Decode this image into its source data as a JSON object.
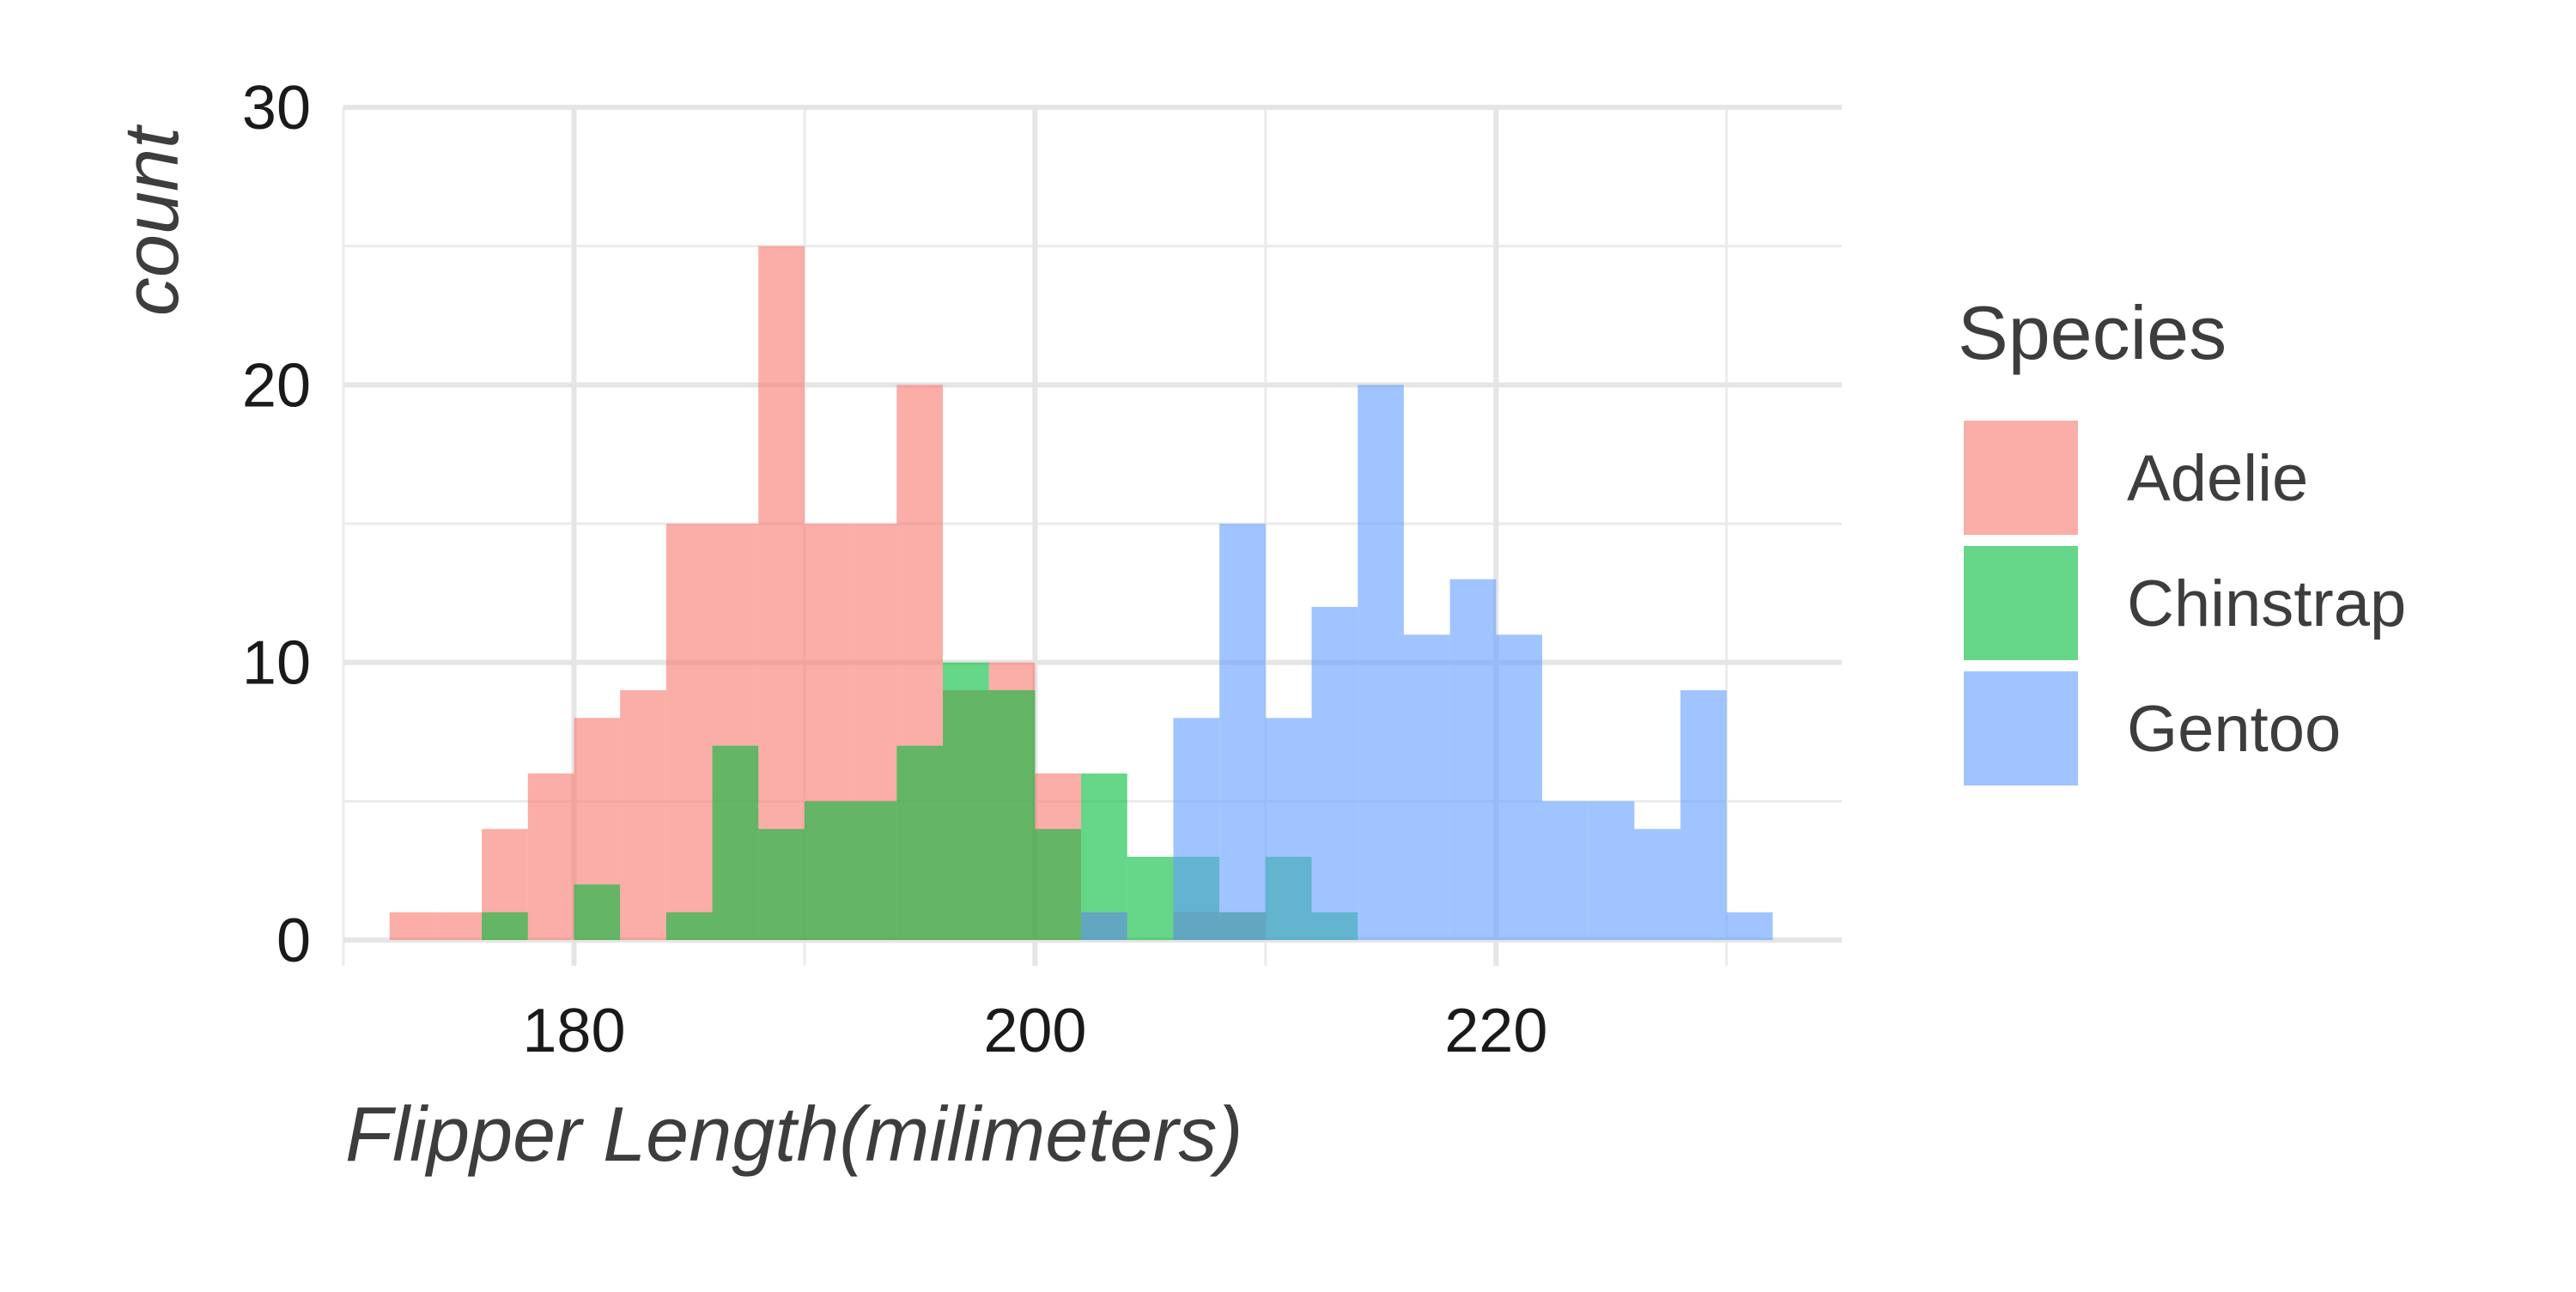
{
  "chart_data": {
    "type": "bar",
    "subtype": "histogram",
    "bin_width": 2,
    "xlabel": "Flipper Length(milimeters)",
    "ylabel": "count",
    "xlim": [
      170,
      235
    ],
    "ylim": [
      0,
      30
    ],
    "x_ticks": [
      180,
      200,
      220
    ],
    "y_ticks": [
      0,
      10,
      20,
      30
    ],
    "grid": true,
    "legend": {
      "title": "Species",
      "position": "right"
    },
    "bin_starts": [
      172,
      174,
      176,
      178,
      180,
      182,
      184,
      186,
      188,
      190,
      192,
      194,
      196,
      198,
      200,
      202,
      204,
      206,
      208,
      210,
      212,
      214,
      216,
      218,
      220,
      222,
      224,
      226,
      228,
      230
    ],
    "series": [
      {
        "name": "Adelie",
        "color": "#F8766D",
        "values": [
          1,
          1,
          4,
          6,
          8,
          9,
          15,
          15,
          25,
          15,
          15,
          20,
          9,
          10,
          6,
          1,
          0,
          1,
          1,
          0,
          0,
          0,
          0,
          0,
          0,
          0,
          0,
          0,
          0,
          0
        ]
      },
      {
        "name": "Chinstrap",
        "color": "#00BA38",
        "values": [
          0,
          0,
          1,
          0,
          2,
          0,
          1,
          7,
          4,
          5,
          5,
          7,
          10,
          9,
          4,
          6,
          3,
          3,
          1,
          3,
          1,
          0,
          0,
          0,
          0,
          0,
          0,
          0,
          0,
          0
        ]
      },
      {
        "name": "Gentoo",
        "color": "#619CFF",
        "values": [
          0,
          0,
          0,
          0,
          0,
          0,
          0,
          0,
          0,
          0,
          0,
          0,
          0,
          0,
          0,
          1,
          0,
          8,
          15,
          8,
          12,
          20,
          11,
          13,
          11,
          5,
          5,
          4,
          9,
          1
        ]
      }
    ]
  }
}
